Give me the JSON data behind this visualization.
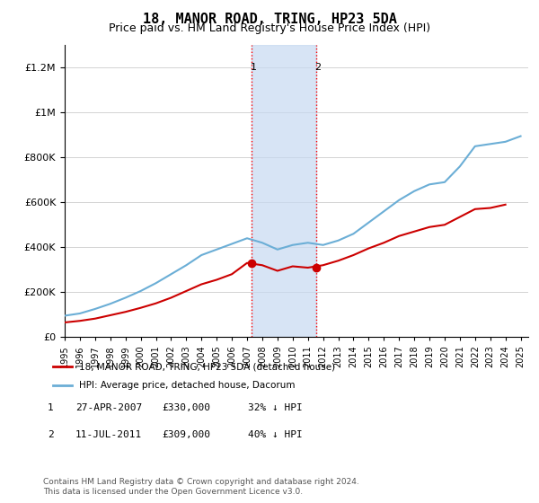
{
  "title": "18, MANOR ROAD, TRING, HP23 5DA",
  "subtitle": "Price paid vs. HM Land Registry's House Price Index (HPI)",
  "legend_line1": "18, MANOR ROAD, TRING, HP23 5DA (detached house)",
  "legend_line2": "HPI: Average price, detached house, Dacorum",
  "footnote": "Contains HM Land Registry data © Crown copyright and database right 2024.\nThis data is licensed under the Open Government Licence v3.0.",
  "table": [
    {
      "num": "1",
      "date": "27-APR-2007",
      "price": "£330,000",
      "hpi": "32% ↓ HPI"
    },
    {
      "num": "2",
      "date": "11-JUL-2011",
      "price": "£309,000",
      "hpi": "40% ↓ HPI"
    }
  ],
  "hpi_color": "#6baed6",
  "price_color": "#cc0000",
  "shade_color": "#c6d9f1",
  "shade_x1": 2007.32,
  "shade_x2": 2011.53,
  "marker1_x": 2007.32,
  "marker1_y": 330000,
  "marker2_x": 2011.53,
  "marker2_y": 309000,
  "ylim": [
    0,
    1300000
  ],
  "xlim": [
    1995.0,
    2025.5
  ],
  "hpi_years": [
    1995,
    1996,
    1997,
    1998,
    1999,
    2000,
    2001,
    2002,
    2003,
    2004,
    2005,
    2006,
    2007,
    2008,
    2009,
    2010,
    2011,
    2012,
    2013,
    2014,
    2015,
    2016,
    2017,
    2018,
    2019,
    2020,
    2021,
    2022,
    2023,
    2024,
    2025
  ],
  "hpi_values": [
    95000,
    105000,
    125000,
    148000,
    175000,
    205000,
    240000,
    280000,
    320000,
    365000,
    390000,
    415000,
    440000,
    420000,
    390000,
    410000,
    420000,
    410000,
    430000,
    460000,
    510000,
    560000,
    610000,
    650000,
    680000,
    690000,
    760000,
    850000,
    860000,
    870000,
    895000
  ],
  "price_years": [
    1995,
    1996,
    1997,
    1998,
    1999,
    2000,
    2001,
    2002,
    2003,
    2004,
    2005,
    2006,
    2007,
    2008,
    2009,
    2010,
    2011,
    2012,
    2013,
    2014,
    2015,
    2016,
    2017,
    2018,
    2019,
    2020,
    2021,
    2022,
    2023,
    2024
  ],
  "price_values": [
    65000,
    72000,
    82000,
    97000,
    112000,
    130000,
    150000,
    175000,
    205000,
    235000,
    255000,
    280000,
    330000,
    320000,
    295000,
    315000,
    309000,
    320000,
    340000,
    365000,
    395000,
    420000,
    450000,
    470000,
    490000,
    500000,
    535000,
    570000,
    575000,
    590000
  ]
}
